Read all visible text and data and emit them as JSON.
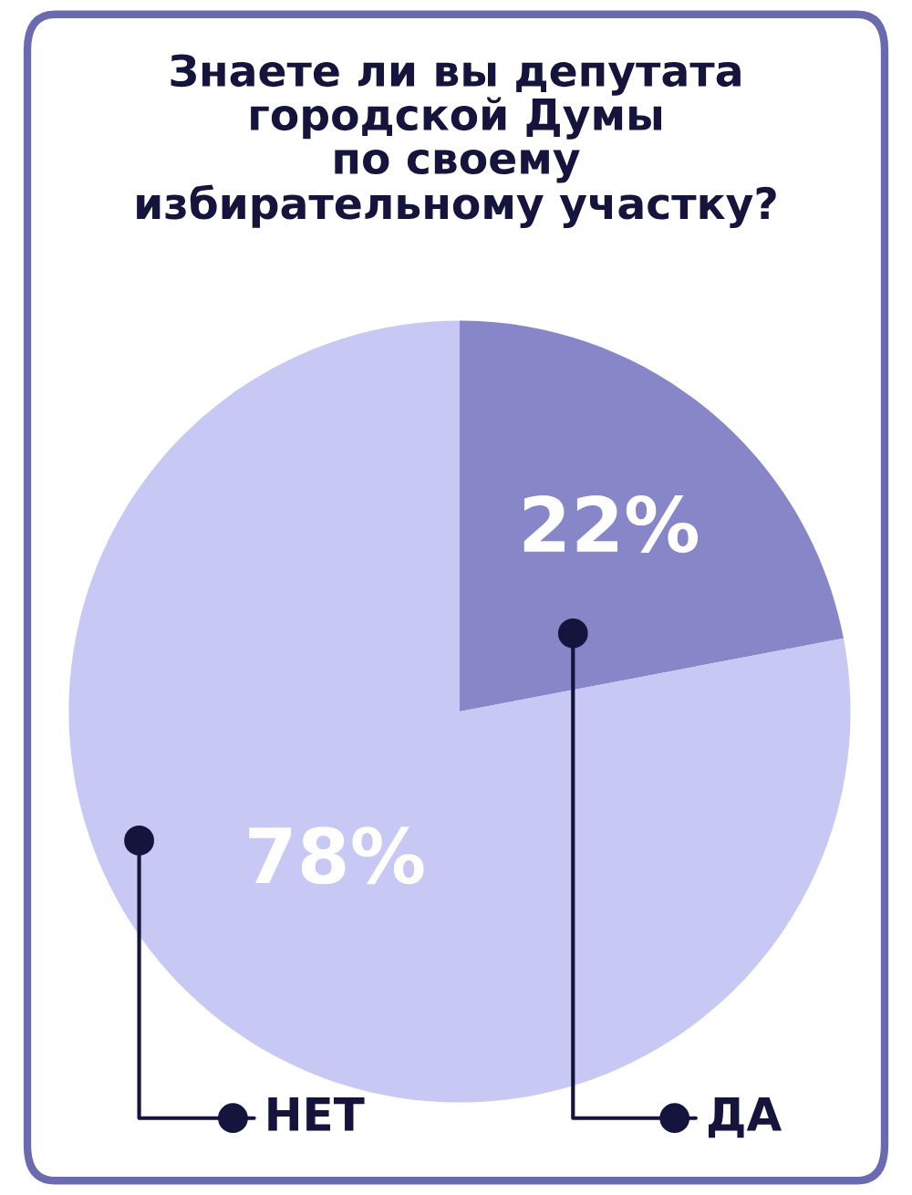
{
  "chart_data": {
    "type": "pie",
    "title": "Знаете ли вы депутата\nгородской Думы\nпо своему\nизбирательному участку?",
    "categories": [
      "ДА",
      "НЕТ"
    ],
    "values": [
      22,
      78
    ],
    "colors": [
      "#8686c8",
      "#c8c8f4"
    ],
    "value_labels": [
      "22%",
      "78%"
    ]
  }
}
